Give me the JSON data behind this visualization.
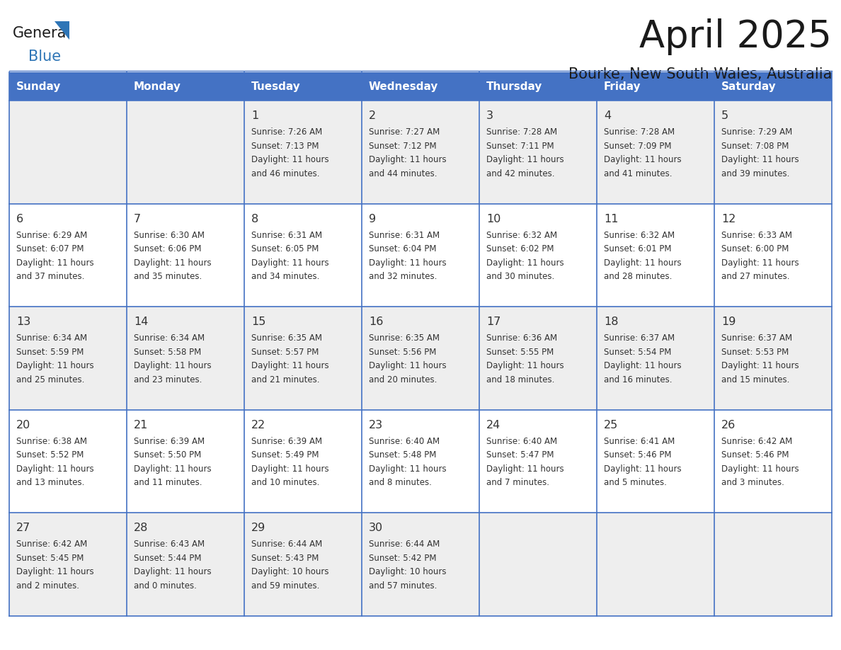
{
  "title": "April 2025",
  "subtitle": "Bourke, New South Wales, Australia",
  "header_bg": "#4472C4",
  "header_text_color": "#FFFFFF",
  "cell_bg_even": "#EEEEEE",
  "cell_bg_odd": "#FFFFFF",
  "border_color": "#4472C4",
  "day_headers": [
    "Sunday",
    "Monday",
    "Tuesday",
    "Wednesday",
    "Thursday",
    "Friday",
    "Saturday"
  ],
  "title_color": "#1a1a1a",
  "subtitle_color": "#1a1a1a",
  "text_color": "#333333",
  "days": [
    {
      "day": 1,
      "col": 2,
      "row": 0,
      "sunrise": "7:26 AM",
      "sunset": "7:13 PM",
      "daylight": "11 hours and 46 minutes."
    },
    {
      "day": 2,
      "col": 3,
      "row": 0,
      "sunrise": "7:27 AM",
      "sunset": "7:12 PM",
      "daylight": "11 hours and 44 minutes."
    },
    {
      "day": 3,
      "col": 4,
      "row": 0,
      "sunrise": "7:28 AM",
      "sunset": "7:11 PM",
      "daylight": "11 hours and 42 minutes."
    },
    {
      "day": 4,
      "col": 5,
      "row": 0,
      "sunrise": "7:28 AM",
      "sunset": "7:09 PM",
      "daylight": "11 hours and 41 minutes."
    },
    {
      "day": 5,
      "col": 6,
      "row": 0,
      "sunrise": "7:29 AM",
      "sunset": "7:08 PM",
      "daylight": "11 hours and 39 minutes."
    },
    {
      "day": 6,
      "col": 0,
      "row": 1,
      "sunrise": "6:29 AM",
      "sunset": "6:07 PM",
      "daylight": "11 hours and 37 minutes."
    },
    {
      "day": 7,
      "col": 1,
      "row": 1,
      "sunrise": "6:30 AM",
      "sunset": "6:06 PM",
      "daylight": "11 hours and 35 minutes."
    },
    {
      "day": 8,
      "col": 2,
      "row": 1,
      "sunrise": "6:31 AM",
      "sunset": "6:05 PM",
      "daylight": "11 hours and 34 minutes."
    },
    {
      "day": 9,
      "col": 3,
      "row": 1,
      "sunrise": "6:31 AM",
      "sunset": "6:04 PM",
      "daylight": "11 hours and 32 minutes."
    },
    {
      "day": 10,
      "col": 4,
      "row": 1,
      "sunrise": "6:32 AM",
      "sunset": "6:02 PM",
      "daylight": "11 hours and 30 minutes."
    },
    {
      "day": 11,
      "col": 5,
      "row": 1,
      "sunrise": "6:32 AM",
      "sunset": "6:01 PM",
      "daylight": "11 hours and 28 minutes."
    },
    {
      "day": 12,
      "col": 6,
      "row": 1,
      "sunrise": "6:33 AM",
      "sunset": "6:00 PM",
      "daylight": "11 hours and 27 minutes."
    },
    {
      "day": 13,
      "col": 0,
      "row": 2,
      "sunrise": "6:34 AM",
      "sunset": "5:59 PM",
      "daylight": "11 hours and 25 minutes."
    },
    {
      "day": 14,
      "col": 1,
      "row": 2,
      "sunrise": "6:34 AM",
      "sunset": "5:58 PM",
      "daylight": "11 hours and 23 minutes."
    },
    {
      "day": 15,
      "col": 2,
      "row": 2,
      "sunrise": "6:35 AM",
      "sunset": "5:57 PM",
      "daylight": "11 hours and 21 minutes."
    },
    {
      "day": 16,
      "col": 3,
      "row": 2,
      "sunrise": "6:35 AM",
      "sunset": "5:56 PM",
      "daylight": "11 hours and 20 minutes."
    },
    {
      "day": 17,
      "col": 4,
      "row": 2,
      "sunrise": "6:36 AM",
      "sunset": "5:55 PM",
      "daylight": "11 hours and 18 minutes."
    },
    {
      "day": 18,
      "col": 5,
      "row": 2,
      "sunrise": "6:37 AM",
      "sunset": "5:54 PM",
      "daylight": "11 hours and 16 minutes."
    },
    {
      "day": 19,
      "col": 6,
      "row": 2,
      "sunrise": "6:37 AM",
      "sunset": "5:53 PM",
      "daylight": "11 hours and 15 minutes."
    },
    {
      "day": 20,
      "col": 0,
      "row": 3,
      "sunrise": "6:38 AM",
      "sunset": "5:52 PM",
      "daylight": "11 hours and 13 minutes."
    },
    {
      "day": 21,
      "col": 1,
      "row": 3,
      "sunrise": "6:39 AM",
      "sunset": "5:50 PM",
      "daylight": "11 hours and 11 minutes."
    },
    {
      "day": 22,
      "col": 2,
      "row": 3,
      "sunrise": "6:39 AM",
      "sunset": "5:49 PM",
      "daylight": "11 hours and 10 minutes."
    },
    {
      "day": 23,
      "col": 3,
      "row": 3,
      "sunrise": "6:40 AM",
      "sunset": "5:48 PM",
      "daylight": "11 hours and 8 minutes."
    },
    {
      "day": 24,
      "col": 4,
      "row": 3,
      "sunrise": "6:40 AM",
      "sunset": "5:47 PM",
      "daylight": "11 hours and 7 minutes."
    },
    {
      "day": 25,
      "col": 5,
      "row": 3,
      "sunrise": "6:41 AM",
      "sunset": "5:46 PM",
      "daylight": "11 hours and 5 minutes."
    },
    {
      "day": 26,
      "col": 6,
      "row": 3,
      "sunrise": "6:42 AM",
      "sunset": "5:46 PM",
      "daylight": "11 hours and 3 minutes."
    },
    {
      "day": 27,
      "col": 0,
      "row": 4,
      "sunrise": "6:42 AM",
      "sunset": "5:45 PM",
      "daylight": "11 hours and 2 minutes."
    },
    {
      "day": 28,
      "col": 1,
      "row": 4,
      "sunrise": "6:43 AM",
      "sunset": "5:44 PM",
      "daylight": "11 hours and 0 minutes."
    },
    {
      "day": 29,
      "col": 2,
      "row": 4,
      "sunrise": "6:44 AM",
      "sunset": "5:43 PM",
      "daylight": "10 hours and 59 minutes."
    },
    {
      "day": 30,
      "col": 3,
      "row": 4,
      "sunrise": "6:44 AM",
      "sunset": "5:42 PM",
      "daylight": "10 hours and 57 minutes."
    }
  ]
}
